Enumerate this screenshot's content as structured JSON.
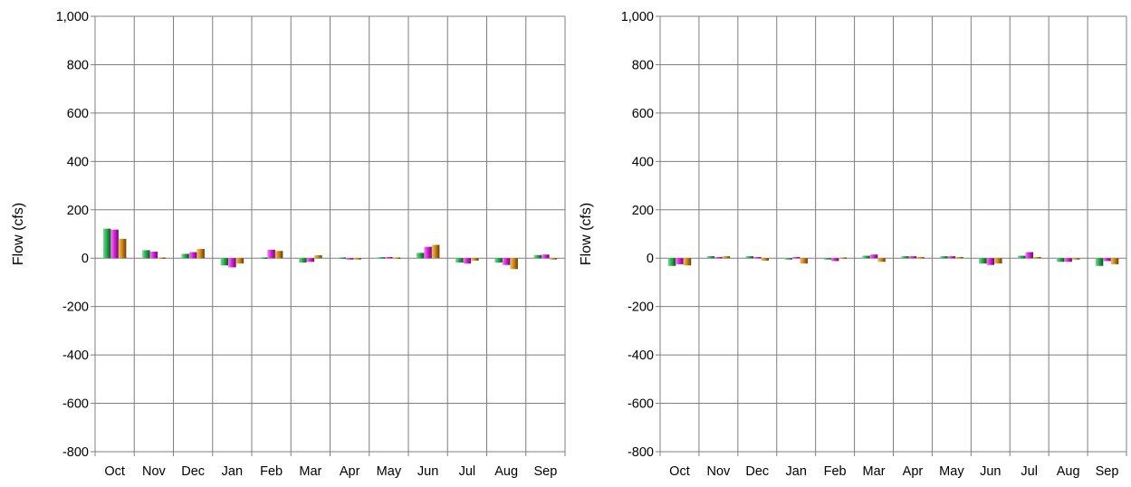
{
  "chart_data": [
    {
      "type": "bar",
      "ylabel": "Flow (cfs)",
      "ylim": [
        -800,
        1000
      ],
      "yticks": [
        "1,000",
        "800",
        "600",
        "400",
        "200",
        "0",
        "-200",
        "-400",
        "-600",
        "-800"
      ],
      "ytick_values": [
        1000,
        800,
        600,
        400,
        200,
        0,
        -200,
        -400,
        -600,
        -800
      ],
      "categories": [
        "Oct",
        "Nov",
        "Dec",
        "Jan",
        "Feb",
        "Mar",
        "Apr",
        "May",
        "Jun",
        "Jul",
        "Aug",
        "Sep"
      ],
      "grid": true,
      "series": [
        {
          "color": "#22b14c",
          "values": [
            122,
            33,
            18,
            -30,
            3,
            -18,
            3,
            4,
            22,
            -18,
            -18,
            13
          ]
        },
        {
          "color": "#e020e0",
          "values": [
            118,
            27,
            25,
            -38,
            35,
            -15,
            -5,
            5,
            47,
            -22,
            -28,
            15
          ]
        },
        {
          "color": "#d88a0c",
          "values": [
            80,
            3,
            38,
            -22,
            30,
            12,
            -5,
            3,
            55,
            -10,
            -45,
            -5
          ]
        }
      ]
    },
    {
      "type": "bar",
      "ylabel": "Flow (cfs)",
      "ylim": [
        -800,
        1000
      ],
      "yticks": [
        "1,000",
        "800",
        "600",
        "400",
        "200",
        "0",
        "-200",
        "-400",
        "-600",
        "-800"
      ],
      "ytick_values": [
        1000,
        800,
        600,
        400,
        200,
        0,
        -200,
        -400,
        -600,
        -800
      ],
      "categories": [
        "Oct",
        "Nov",
        "Dec",
        "Jan",
        "Feb",
        "Mar",
        "Apr",
        "May",
        "Jun",
        "Jul",
        "Aug",
        "Sep"
      ],
      "grid": true,
      "series": [
        {
          "color": "#22b14c",
          "values": [
            -32,
            8,
            8,
            -5,
            -5,
            10,
            8,
            8,
            -22,
            10,
            -15,
            -32
          ]
        },
        {
          "color": "#e020e0",
          "values": [
            -25,
            5,
            5,
            5,
            -12,
            15,
            8,
            8,
            -28,
            25,
            -15,
            -12
          ]
        },
        {
          "color": "#d88a0c",
          "values": [
            -30,
            8,
            -10,
            -22,
            3,
            -15,
            5,
            5,
            -22,
            5,
            -5,
            -25
          ]
        }
      ]
    }
  ]
}
